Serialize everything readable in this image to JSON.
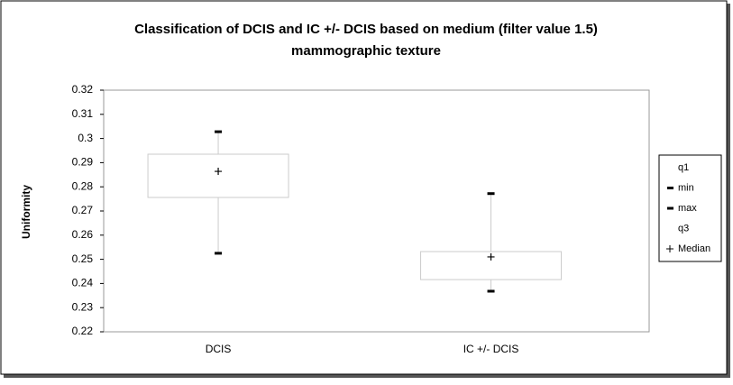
{
  "chart_data": {
    "type": "box",
    "title": [
      "Classification of DCIS and IC +/- DCIS based on medium (filter value 1.5)",
      "mammographic texture"
    ],
    "y_label": "Uniformity",
    "categories": [
      "DCIS",
      "IC +/- DCIS"
    ],
    "series": [
      {
        "name": "q1",
        "marker": "none",
        "color": "#000000",
        "values": [
          0.2756,
          0.2416
        ]
      },
      {
        "name": "min",
        "marker": "dash",
        "color": "#000000",
        "values": [
          0.2525,
          0.2368
        ]
      },
      {
        "name": "max",
        "marker": "dash",
        "color": "#000000",
        "values": [
          0.3028,
          0.2772
        ]
      },
      {
        "name": "q3",
        "marker": "none",
        "color": "#000000",
        "values": [
          0.2935,
          0.2532
        ]
      },
      {
        "name": "Median",
        "marker": "plus",
        "color": "#000000",
        "values": [
          0.2864,
          0.251
        ]
      }
    ],
    "ylim": [
      0.22,
      0.32
    ],
    "yticks": [
      0.22,
      0.23,
      0.24,
      0.25,
      0.26,
      0.27,
      0.28,
      0.29,
      0.3,
      0.31,
      0.32
    ]
  }
}
